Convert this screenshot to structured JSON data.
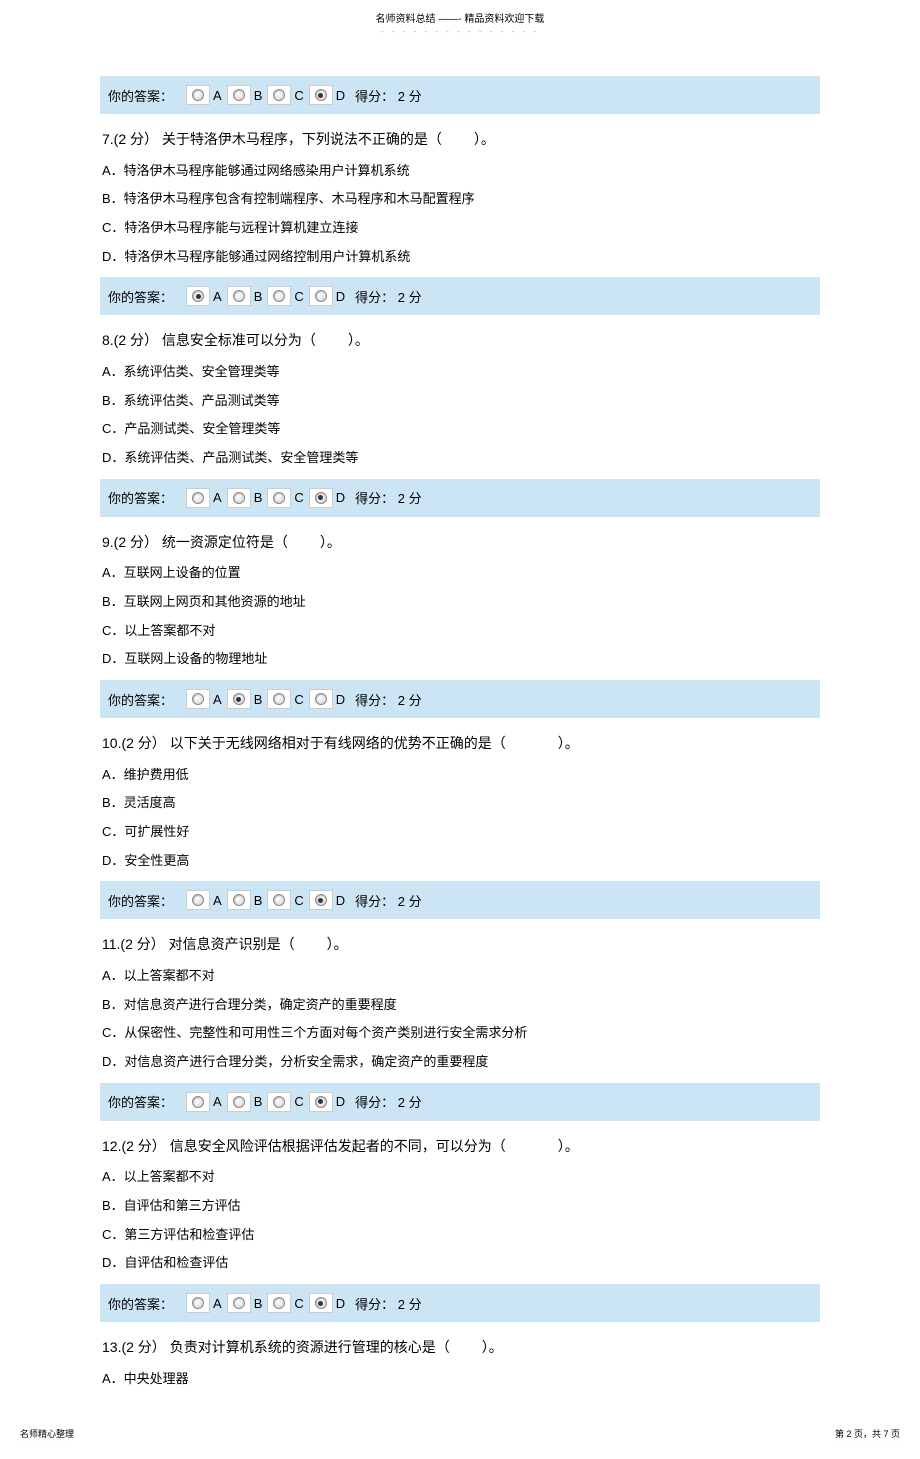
{
  "header": {
    "title": "名师资料总结 ——- 精品资料欢迎下载",
    "dots": "- - - - - - - - - - - - - - -"
  },
  "answer_bar": {
    "label": "你的答案：",
    "options": [
      "A",
      "B",
      "C",
      "D"
    ],
    "score_prefix": "得分：",
    "score_value": "2 分"
  },
  "top_answer_selected": 3,
  "questions": [
    {
      "num": "7.(2  分）",
      "stem": "关于特洛伊木马程序，下列说法不正确的是（",
      "tail": "）。",
      "options": [
        "A．特洛伊木马程序能够通过网络感染用户计算机系统",
        "B．特洛伊木马程序包含有控制端程序、木马程序和木马配置程序",
        "C．特洛伊木马程序能与远程计算机建立连接",
        "D．特洛伊木马程序能够通过网络控制用户计算机系统"
      ],
      "selected": 0
    },
    {
      "num": "8.(2  分）",
      "stem": "信息安全标准可以分为（",
      "tail": "）。",
      "options": [
        "A．系统评估类、安全管理类等",
        "B．系统评估类、产品测试类等",
        "C．产品测试类、安全管理类等",
        "D．系统评估类、产品测试类、安全管理类等"
      ],
      "selected": 3
    },
    {
      "num": "9.(2  分）",
      "stem": "统一资源定位符是（",
      "tail": "）。",
      "options": [
        "A．互联网上设备的位置",
        "B．互联网上网页和其他资源的地址",
        "C．以上答案都不对",
        "D．互联网上设备的物理地址"
      ],
      "selected": 1
    },
    {
      "num": "10.(2  分）",
      "stem": "以下关于无线网络相对于有线网络的优势不正确的是（",
      "tail": "）。",
      "options": [
        "A．维护费用低",
        "B．灵活度高",
        "C．可扩展性好",
        "D．安全性更高"
      ],
      "selected": 3
    },
    {
      "num": "11.(2  分）",
      "stem": "对信息资产识别是（",
      "tail": "）。",
      "options": [
        "A．以上答案都不对",
        "B．对信息资产进行合理分类，确定资产的重要程度",
        "C．从保密性、完整性和可用性三个方面对每个资产类别进行安全需求分析",
        "D．对信息资产进行合理分类，分析安全需求，确定资产的重要程度"
      ],
      "selected": 3
    },
    {
      "num": "12.(2  分）",
      "stem": "信息安全风险评估根据评估发起者的不同，可以分为（",
      "tail": "）。",
      "options": [
        "A．以上答案都不对",
        "B．自评估和第三方评估",
        "C．第三方评估和检查评估",
        "D．自评估和检查评估"
      ],
      "selected": 3
    },
    {
      "num": "13.(2  分）",
      "stem": "负责对计算机系统的资源进行管理的核心是（",
      "tail": "）。",
      "options": [
        "A．中央处理器"
      ],
      "selected": null
    }
  ],
  "footer": {
    "left": "名师精心整理",
    "left_sub": ". . . . . . .",
    "right": "第 2 页，共 7 页",
    "right_sub": ". . . . . . . . ."
  }
}
